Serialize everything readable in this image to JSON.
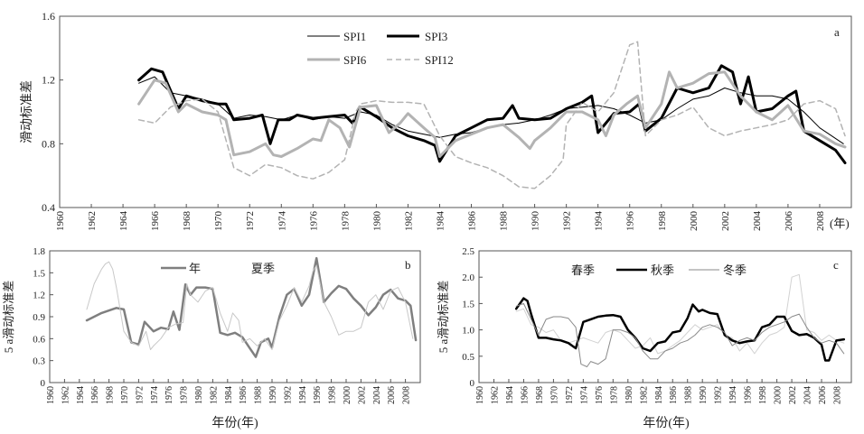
{
  "chart_data": [
    {
      "panel": "a",
      "type": "line",
      "ylabel": "滑动标准差",
      "xunit": "(年)",
      "xlim": [
        1960,
        2010
      ],
      "ylim": [
        0.4,
        1.6
      ],
      "xticks": [
        1960,
        1962,
        1964,
        1966,
        1968,
        1970,
        1972,
        1974,
        1976,
        1978,
        1980,
        1982,
        1984,
        1986,
        1988,
        1990,
        1992,
        1994,
        1996,
        1998,
        2000,
        2002,
        2004,
        2006,
        2008
      ],
      "yticks": [
        0.4,
        0.8,
        1.2,
        1.6
      ],
      "ytick_labels": [
        "0.4",
        "0.8",
        "1.2",
        "1.6"
      ],
      "series": [
        {
          "name": "SPI1",
          "color": "#000000",
          "x": [
            1965,
            1966,
            1967,
            1968,
            1969,
            1970,
            1971,
            1972,
            1973,
            1974,
            1975,
            1976,
            1977,
            1978,
            1979,
            1980,
            1981,
            1982,
            1983,
            1984,
            1985,
            1986,
            1987,
            1988,
            1989,
            1990,
            1991,
            1992,
            1993,
            1994,
            1995,
            1996,
            1997,
            1998,
            1999,
            2000,
            2001,
            2002,
            2003,
            2004,
            2005,
            2006,
            2007,
            2008,
            2009.5
          ],
          "y": [
            1.18,
            1.22,
            1.12,
            1.1,
            1.08,
            1.05,
            0.96,
            0.98,
            0.97,
            0.95,
            0.98,
            0.95,
            0.97,
            0.96,
            1.0,
            0.98,
            0.92,
            0.88,
            0.86,
            0.84,
            0.86,
            0.87,
            0.9,
            0.92,
            0.93,
            0.95,
            0.98,
            1.02,
            1.03,
            1.04,
            1.02,
            0.98,
            0.93,
            0.95,
            1.02,
            1.08,
            1.1,
            1.15,
            1.12,
            1.1,
            1.1,
            1.08,
            1.0,
            0.9,
            0.8
          ]
        },
        {
          "name": "SPI3",
          "color": "#000000",
          "x": [
            1965,
            1965.8,
            1966.5,
            1967.5,
            1968,
            1969,
            1970,
            1970.5,
            1971,
            1972,
            1972.8,
            1973.3,
            1973.8,
            1974.5,
            1975,
            1976,
            1977,
            1978,
            1978.5,
            1979,
            1980,
            1981,
            1982,
            1983,
            1983.7,
            1984,
            1985,
            1986,
            1987,
            1988,
            1988.6,
            1989,
            1990,
            1991,
            1992,
            1993,
            1993.6,
            1994,
            1995,
            1996,
            1996.6,
            1997,
            1998,
            1999,
            2000,
            2001,
            2001.8,
            2002.5,
            2003,
            2003.5,
            2004,
            2005,
            2006,
            2006.5,
            2007,
            2008,
            2009,
            2009.6
          ],
          "y": [
            1.2,
            1.27,
            1.25,
            1.02,
            1.1,
            1.07,
            1.05,
            1.05,
            0.95,
            0.96,
            0.98,
            0.8,
            0.95,
            0.95,
            0.98,
            0.96,
            0.97,
            0.98,
            0.93,
            1.03,
            0.97,
            0.9,
            0.85,
            0.82,
            0.79,
            0.69,
            0.85,
            0.9,
            0.95,
            0.96,
            1.04,
            0.96,
            0.95,
            0.96,
            1.02,
            1.06,
            1.1,
            0.87,
            0.99,
            1.0,
            1.05,
            0.88,
            0.96,
            1.15,
            1.12,
            1.15,
            1.29,
            1.25,
            1.05,
            1.22,
            1.0,
            1.02,
            1.1,
            1.13,
            0.88,
            0.82,
            0.76,
            0.68
          ]
        },
        {
          "name": "SPI6",
          "color": "#b3b3b3",
          "x": [
            1965,
            1966,
            1966.7,
            1967.5,
            1968,
            1969,
            1970,
            1970.5,
            1971,
            1972,
            1973,
            1973.5,
            1974,
            1975,
            1976,
            1976.5,
            1977,
            1977.7,
            1978.3,
            1979,
            1980,
            1980.8,
            1981.5,
            1982,
            1983,
            1983.7,
            1984,
            1985,
            1986,
            1987,
            1988,
            1989,
            1989.7,
            1990,
            1991,
            1992,
            1993,
            1994,
            1994.5,
            1995,
            1995.8,
            1996.5,
            1997,
            1998,
            1998.5,
            1999,
            2000,
            2001,
            2002,
            2003,
            2004,
            2005,
            2006,
            2007,
            2008,
            2009,
            2009.6
          ],
          "y": [
            1.05,
            1.2,
            1.18,
            1.0,
            1.05,
            1.0,
            0.98,
            0.95,
            0.73,
            0.75,
            0.8,
            0.73,
            0.72,
            0.77,
            0.83,
            0.82,
            0.95,
            0.9,
            0.78,
            1.03,
            1.04,
            0.87,
            0.93,
            0.99,
            0.9,
            0.84,
            0.72,
            0.82,
            0.86,
            0.9,
            0.92,
            0.84,
            0.77,
            0.82,
            0.9,
            1.0,
            1.0,
            0.95,
            0.85,
            0.98,
            1.05,
            1.1,
            0.9,
            1.05,
            1.25,
            1.15,
            1.18,
            1.24,
            1.25,
            1.1,
            1.0,
            0.95,
            1.04,
            0.88,
            0.86,
            0.8,
            0.78
          ]
        },
        {
          "name": "SPI12",
          "color": "#b3b3b3",
          "dash": "6,4",
          "x": [
            1965,
            1966,
            1967,
            1968,
            1969,
            1970,
            1971,
            1972,
            1973,
            1974,
            1975,
            1976,
            1977,
            1978,
            1978.7,
            1979,
            1980,
            1981,
            1982,
            1983,
            1984,
            1985,
            1986,
            1987,
            1988,
            1989,
            1990,
            1991,
            1991.8,
            1992,
            1993,
            1994,
            1995,
            1996,
            1996.5,
            1997,
            1998,
            1999,
            2000,
            2001,
            2002,
            2003,
            2004,
            2005,
            2006,
            2007,
            2008,
            2009,
            2009.6
          ],
          "y": [
            0.95,
            0.93,
            1.03,
            1.07,
            1.08,
            1.0,
            0.65,
            0.6,
            0.67,
            0.65,
            0.6,
            0.58,
            0.62,
            0.7,
            1.0,
            1.05,
            1.07,
            1.06,
            1.06,
            1.05,
            0.85,
            0.72,
            0.68,
            0.65,
            0.6,
            0.53,
            0.52,
            0.6,
            0.7,
            0.92,
            1.06,
            1.0,
            1.12,
            1.42,
            1.44,
            0.85,
            0.95,
            0.98,
            1.03,
            0.9,
            0.85,
            0.88,
            0.9,
            0.92,
            0.95,
            1.05,
            1.07,
            1.02,
            0.85
          ]
        }
      ]
    },
    {
      "panel": "b",
      "type": "line",
      "xlabel": "年份(年)",
      "ylabel": "5 a滑动标准差",
      "xlim": [
        1960,
        2010
      ],
      "ylim": [
        0,
        1.8
      ],
      "xticks": [
        1960,
        1962,
        1964,
        1966,
        1968,
        1970,
        1972,
        1974,
        1976,
        1978,
        1980,
        1982,
        1984,
        1986,
        1988,
        1990,
        1992,
        1994,
        1996,
        1998,
        2000,
        2002,
        2004,
        2006,
        2008
      ],
      "yticks": [
        0,
        0.3,
        0.6,
        0.9,
        1.2,
        1.5,
        1.8
      ],
      "ytick_labels": [
        "0",
        "0.3",
        "0.6",
        "0.9",
        "1.2",
        "1.5",
        "1.8"
      ],
      "series": [
        {
          "name": "年",
          "color": "#7f7f7f",
          "x": [
            1965,
            1967,
            1969,
            1970,
            1971,
            1972,
            1972.8,
            1974,
            1975,
            1976,
            1976.7,
            1977.5,
            1978.3,
            1979,
            1979.8,
            1981,
            1982,
            1983,
            1984,
            1985,
            1986,
            1987,
            1987.8,
            1988.5,
            1989.5,
            1990,
            1991,
            1992,
            1993,
            1994,
            1995,
            1996,
            1997,
            1998,
            1999,
            2000,
            2001,
            2002,
            2003,
            2004,
            2005,
            2006,
            2007,
            2008,
            2008.7,
            2009.4
          ],
          "y": [
            0.85,
            0.95,
            1.02,
            1.0,
            0.55,
            0.52,
            0.83,
            0.7,
            0.75,
            0.73,
            0.97,
            0.72,
            1.34,
            1.2,
            1.3,
            1.3,
            1.28,
            0.68,
            0.65,
            0.68,
            0.62,
            0.47,
            0.35,
            0.55,
            0.6,
            0.48,
            0.9,
            1.2,
            1.28,
            1.05,
            1.2,
            1.7,
            1.1,
            1.22,
            1.32,
            1.28,
            1.15,
            1.05,
            0.92,
            1.03,
            1.2,
            1.27,
            1.15,
            1.12,
            1.05,
            0.58
          ]
        },
        {
          "name": "夏季",
          "color": "#c8c8c8",
          "x": [
            1965,
            1966,
            1967,
            1967.5,
            1968,
            1968.5,
            1969,
            1970,
            1971,
            1972,
            1973,
            1973.6,
            1974,
            1975,
            1976,
            1977,
            1978,
            1978.5,
            1979,
            1980,
            1981,
            1982,
            1983,
            1984,
            1984.7,
            1985.5,
            1986,
            1987,
            1988,
            1989,
            1990,
            1991,
            1992,
            1993,
            1994,
            1995,
            1995.5,
            1996,
            1997,
            1998,
            1999,
            2000,
            2001,
            2002,
            2003,
            2004,
            2005,
            2006,
            2007,
            2008,
            2009
          ],
          "y": [
            1.0,
            1.35,
            1.55,
            1.62,
            1.65,
            1.55,
            1.3,
            0.7,
            0.55,
            0.5,
            0.7,
            0.45,
            0.5,
            0.6,
            0.75,
            0.8,
            0.82,
            1.35,
            1.2,
            1.1,
            1.25,
            1.3,
            0.95,
            0.7,
            0.95,
            0.85,
            0.55,
            0.6,
            0.5,
            0.6,
            0.45,
            0.85,
            1.05,
            1.3,
            1.1,
            1.32,
            1.52,
            1.6,
            1.1,
            0.9,
            0.65,
            0.7,
            0.7,
            0.75,
            1.1,
            1.2,
            1.0,
            1.25,
            1.3,
            1.1,
            0.6
          ]
        }
      ]
    },
    {
      "panel": "c",
      "type": "line",
      "xlabel": "年份(年)",
      "ylabel": "5 a滑动标准差",
      "xlim": [
        1960,
        2010
      ],
      "ylim": [
        0,
        2.5
      ],
      "xticks": [
        1960,
        1962,
        1964,
        1966,
        1968,
        1970,
        1972,
        1974,
        1976,
        1978,
        1980,
        1982,
        1984,
        1986,
        1988,
        1990,
        1992,
        1994,
        1996,
        1998,
        2000,
        2002,
        2004,
        2006,
        2008
      ],
      "yticks": [
        0,
        0.5,
        1.0,
        1.5,
        2.0,
        2.5
      ],
      "ytick_labels": [
        "0",
        "0.5",
        "1.0",
        "1.5",
        "2.0",
        "2.5"
      ],
      "series": [
        {
          "name": "春季",
          "color": "#d2d2d2",
          "x": [
            1965,
            1966,
            1967,
            1968,
            1969,
            1970,
            1971,
            1972,
            1973,
            1974,
            1975,
            1976,
            1977,
            1978,
            1979,
            1980,
            1981,
            1982,
            1983,
            1984,
            1985,
            1986,
            1987,
            1988,
            1989,
            1990,
            1991,
            1992,
            1993,
            1994,
            1995,
            1996,
            1997,
            1998,
            1999,
            2000,
            2001,
            2002,
            2003,
            2004,
            2005,
            2006,
            2007,
            2008,
            2009
          ],
          "y": [
            1.35,
            1.4,
            1.1,
            1.05,
            0.95,
            1.0,
            0.8,
            0.75,
            0.8,
            0.85,
            0.8,
            0.75,
            0.95,
            1.0,
            0.95,
            0.8,
            0.65,
            0.7,
            0.85,
            0.55,
            0.6,
            0.7,
            0.8,
            0.95,
            1.1,
            1.0,
            1.05,
            1.1,
            0.9,
            0.85,
            0.6,
            0.75,
            0.55,
            0.75,
            0.9,
            0.95,
            1.05,
            2.0,
            2.05,
            1.0,
            0.95,
            0.8,
            0.9,
            0.8,
            0.75
          ]
        },
        {
          "name": "秋季",
          "color": "#000000",
          "x": [
            1965,
            1966,
            1966.5,
            1967,
            1968,
            1969,
            1970,
            1971,
            1972,
            1973,
            1974,
            1975,
            1976,
            1977,
            1978,
            1979,
            1980,
            1981,
            1982,
            1983,
            1984,
            1985,
            1986,
            1987,
            1988,
            1988.7,
            1989.5,
            1990,
            1991,
            1992,
            1993,
            1994,
            1995,
            1996,
            1997,
            1998,
            1999,
            2000,
            2001,
            2002,
            2003,
            2004,
            2005,
            2006,
            2006.5,
            2007,
            2008,
            2009
          ],
          "y": [
            1.4,
            1.6,
            1.55,
            1.3,
            0.85,
            0.85,
            0.82,
            0.8,
            0.75,
            0.65,
            1.15,
            1.2,
            1.25,
            1.27,
            1.28,
            1.25,
            1.0,
            0.85,
            0.65,
            0.6,
            0.75,
            0.78,
            0.95,
            0.98,
            1.22,
            1.48,
            1.35,
            1.38,
            1.32,
            1.3,
            0.9,
            0.8,
            0.75,
            0.78,
            0.8,
            1.05,
            1.1,
            1.25,
            1.25,
            0.98,
            0.9,
            0.92,
            0.85,
            0.72,
            0.42,
            0.42,
            0.8,
            0.82
          ]
        },
        {
          "name": "冬季",
          "color": "#8a8a8a",
          "x": [
            1965,
            1966,
            1967,
            1968,
            1969,
            1970,
            1971,
            1972,
            1973,
            1973.7,
            1974.5,
            1975,
            1976,
            1977,
            1978,
            1979,
            1980,
            1981,
            1982,
            1983,
            1984,
            1985,
            1986,
            1987,
            1988,
            1989,
            1990,
            1991,
            1992,
            1993,
            1994,
            1995,
            1996,
            1997,
            1998,
            1999,
            2000,
            2001,
            2002,
            2003,
            2004,
            2005,
            2006,
            2007,
            2008,
            2009
          ],
          "y": [
            1.45,
            1.5,
            1.2,
            0.9,
            1.2,
            1.25,
            1.25,
            1.22,
            1.05,
            0.35,
            0.3,
            0.4,
            0.35,
            0.45,
            1.0,
            1.0,
            0.95,
            0.85,
            0.6,
            0.45,
            0.45,
            0.6,
            0.65,
            0.75,
            0.8,
            0.9,
            1.05,
            1.1,
            1.05,
            0.95,
            0.7,
            0.8,
            0.85,
            0.8,
            0.95,
            1.05,
            1.1,
            1.15,
            1.25,
            1.3,
            1.05,
            0.85,
            0.75,
            0.8,
            0.75,
            0.55
          ]
        }
      ]
    }
  ]
}
